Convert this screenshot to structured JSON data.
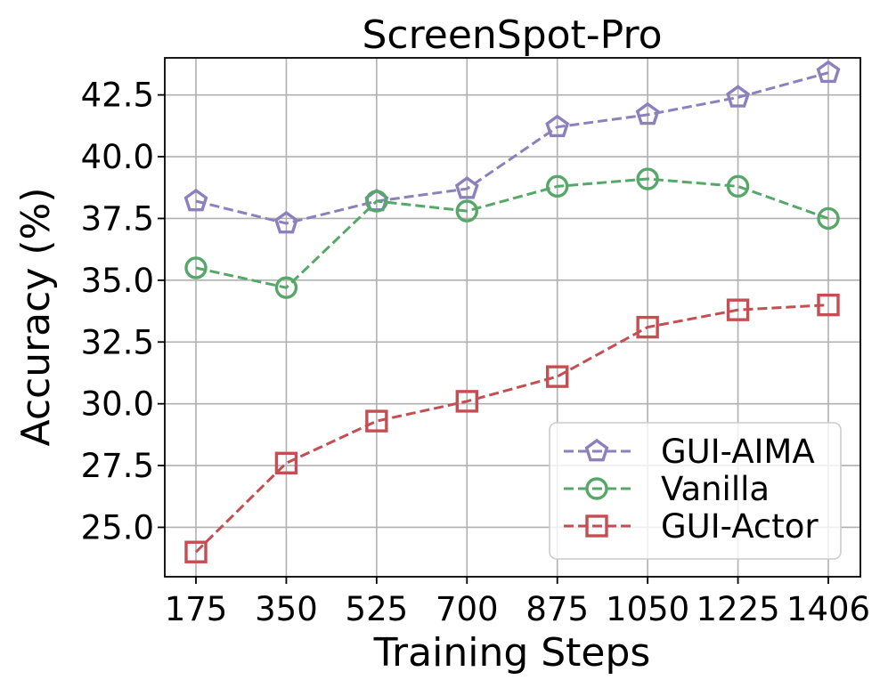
{
  "chart_data": {
    "type": "line",
    "title": "ScreenSpot-Pro",
    "xlabel": "Training Steps",
    "ylabel": "Accuracy (%)",
    "categories": [
      "175",
      "350",
      "525",
      "700",
      "875",
      "1050",
      "1225",
      "1406"
    ],
    "ylim": [
      23.0,
      44.0
    ],
    "yticks": [
      "25.0",
      "27.5",
      "30.0",
      "32.5",
      "35.0",
      "37.5",
      "40.0",
      "42.5"
    ],
    "grid": true,
    "legend_position": "lower right",
    "series": [
      {
        "name": "GUI-AIMA",
        "marker": "pentagon",
        "color": "#8c80bd",
        "values": [
          38.2,
          37.3,
          38.2,
          38.7,
          41.2,
          41.7,
          42.4,
          43.4
        ]
      },
      {
        "name": "Vanilla",
        "marker": "circle",
        "color": "#55a868",
        "values": [
          35.5,
          34.7,
          38.2,
          37.8,
          38.8,
          39.1,
          38.8,
          37.5
        ]
      },
      {
        "name": "GUI-Actor",
        "marker": "square",
        "color": "#c44e52",
        "values": [
          24.0,
          27.6,
          29.3,
          30.1,
          31.1,
          33.1,
          33.8,
          34.0
        ]
      }
    ]
  }
}
